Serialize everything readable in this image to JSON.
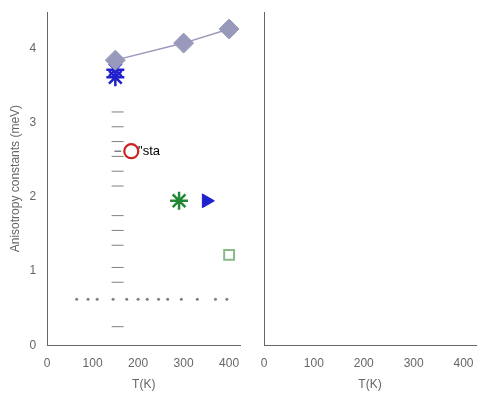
{
  "chart_data": [
    {
      "type": "scatter",
      "xlabel": "T(K)",
      "ylabel": "Anisotropy constants (meV)",
      "xlim": [
        0,
        425
      ],
      "ylim": [
        0.0,
        4.5
      ],
      "xticks": [
        0,
        100,
        200,
        300,
        400
      ],
      "yticks": [
        0.0,
        1.0,
        2.0,
        3.0,
        4.0
      ],
      "grid": false,
      "series": [
        {
          "type": "line",
          "color": "#9999bb",
          "marker": "diamond",
          "x": [
            150,
            300,
            400
          ],
          "values": [
            3.85,
            4.08,
            4.27
          ]
        },
        {
          "type": "scatter",
          "color": "#2020cc",
          "marker": "star",
          "x": [
            150
          ],
          "values": [
            3.72
          ]
        },
        {
          "type": "scatter",
          "color": "#2020cc",
          "marker": "star",
          "x": [
            150
          ],
          "values": [
            3.62
          ]
        },
        {
          "type": "line",
          "color": "#808080",
          "x": [
            148,
            163
          ],
          "values": [
            2.62,
            2.62
          ]
        },
        {
          "type": "scatter",
          "color": "#cc2222",
          "marker": "open_circle",
          "x": [
            185
          ],
          "values": [
            2.62
          ]
        },
        {
          "type": "scatter",
          "color": "#228833",
          "marker": "star",
          "x": [
            290
          ],
          "values": [
            1.95
          ]
        },
        {
          "type": "scatter",
          "color": "#2020cc",
          "marker": "triangle_right",
          "x": [
            350
          ],
          "values": [
            1.95
          ]
        },
        {
          "type": "scatter",
          "color": "#88bb88",
          "marker": "open_square",
          "x": [
            400
          ],
          "values": [
            1.22
          ]
        },
        {
          "type": "scatter",
          "color": "#808080",
          "marker": "dash",
          "x": [
            155,
            155,
            155,
            155,
            155,
            155,
            155,
            155,
            155,
            155,
            155,
            155
          ],
          "values": [
            3.15,
            2.95,
            2.75,
            2.55,
            2.35,
            2.15,
            1.75,
            1.55,
            1.35,
            1.05,
            0.85,
            0.25
          ]
        },
        {
          "type": "scatter",
          "color": "#808080",
          "marker": "dot",
          "x": [
            65,
            90,
            110,
            145,
            175,
            200,
            220,
            245,
            265,
            295,
            330,
            370,
            395
          ],
          "values": [
            0.62,
            0.62,
            0.62,
            0.62,
            0.62,
            0.62,
            0.62,
            0.62,
            0.62,
            0.62,
            0.62,
            0.62,
            0.62
          ]
        }
      ],
      "annotations": [
        {
          "text": "\"sta",
          "x": 200,
          "y": 2.62
        }
      ]
    },
    {
      "type": "scatter",
      "xlabel": "T(K)",
      "xlim": [
        0,
        425
      ],
      "ylim": [
        0.0,
        4.5
      ],
      "xticks": [
        0,
        100,
        200,
        300,
        400
      ],
      "yticks": [
        0.0,
        1.0,
        2.0,
        3.0,
        4.0
      ],
      "grid": false,
      "tick_labels": "x",
      "series": []
    }
  ]
}
